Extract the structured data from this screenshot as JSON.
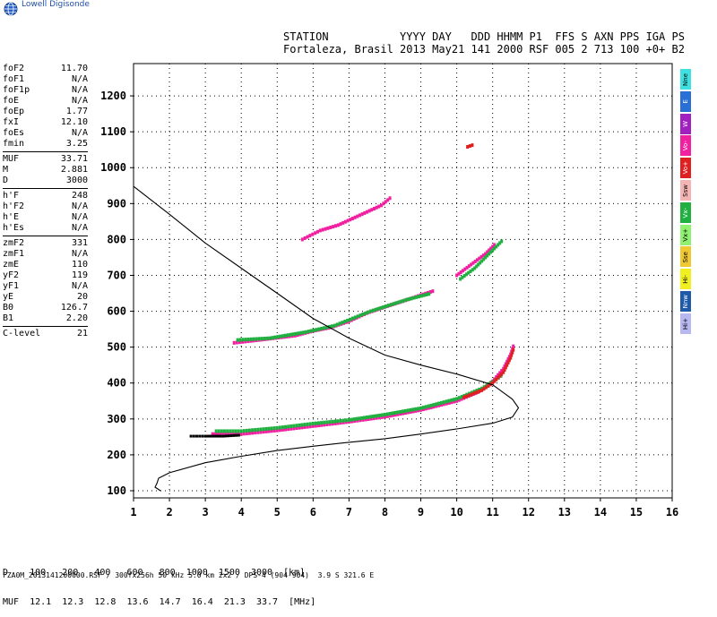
{
  "brand": {
    "name": "Lowell Digisonde"
  },
  "header": {
    "labels": "STATION           YYYY DAY   DDD HHMM P1  FFS S AXN PPS IGA PS",
    "values": "Fortaleza, Brasil 2013 May21 141 2000 RSF 005 2 713 100 +0+ B2"
  },
  "params_group1": [
    {
      "name": "foF2",
      "value": "11.70"
    },
    {
      "name": "foF1",
      "value": "N/A"
    },
    {
      "name": "foF1p",
      "value": "N/A"
    },
    {
      "name": "foE",
      "value": "N/A"
    },
    {
      "name": "foEp",
      "value": "1.77"
    },
    {
      "name": "fxI",
      "value": "12.10"
    },
    {
      "name": "foEs",
      "value": "N/A"
    },
    {
      "name": "fmin",
      "value": "3.25"
    }
  ],
  "params_group2": [
    {
      "name": "MUF",
      "value": "33.71"
    },
    {
      "name": "M",
      "value": "2.881"
    },
    {
      "name": "D",
      "value": "3000"
    }
  ],
  "params_group3": [
    {
      "name": "h'F",
      "value": "248"
    },
    {
      "name": "h'F2",
      "value": "N/A"
    },
    {
      "name": "h'E",
      "value": "N/A"
    },
    {
      "name": "h'Es",
      "value": "N/A"
    }
  ],
  "params_group4": [
    {
      "name": "zmF2",
      "value": "331"
    },
    {
      "name": "zmF1",
      "value": "N/A"
    },
    {
      "name": "zmE",
      "value": "110"
    },
    {
      "name": "yF2",
      "value": "119"
    },
    {
      "name": "yF1",
      "value": "N/A"
    },
    {
      "name": "yE",
      "value": "20"
    },
    {
      "name": "B0",
      "value": "126.7"
    },
    {
      "name": "B1",
      "value": "2.20"
    }
  ],
  "params_group5": [
    {
      "name": "C-level",
      "value": "21"
    }
  ],
  "legend": [
    {
      "label": "Nne",
      "color": "#3fe0e0"
    },
    {
      "label": "E",
      "color": "#2a6fd6"
    },
    {
      "label": "W",
      "color": "#a020c0"
    },
    {
      "label": "Vo-",
      "color": "#f020a0"
    },
    {
      "label": "Vo+",
      "color": "#e02020"
    },
    {
      "label": "Ssw",
      "color": "#f4b4b4"
    },
    {
      "label": "Vx-",
      "color": "#20b040"
    },
    {
      "label": "Vx+",
      "color": "#90f070"
    },
    {
      "label": "Sse",
      "color": "#f0c830"
    },
    {
      "label": "Hi-",
      "color": "#f0f020"
    },
    {
      "label": "Nnw",
      "color": "#1e5aa8"
    },
    {
      "label": "Hi+",
      "color": "#b8b8f0"
    }
  ],
  "muf_table": {
    "d_line": "D    100   200   400   600   800  1000  1500  3000  [km]",
    "muf_line": "MUF  12.1  12.3  12.8  13.6  14.7  16.4  21.3  33.7  [MHz]"
  },
  "footer": "FZA0M_2013141200000.RSF / 300fx256h 50 kHz 5.0 km 2x2 / DPS-4 (904-904)  3.9 S 321.6 E",
  "chart_data": {
    "type": "scatter",
    "xlim": [
      1,
      16
    ],
    "ylim": [
      80,
      1290
    ],
    "x_ticks": [
      "1",
      "2",
      "3",
      "4",
      "5",
      "6",
      "7",
      "8",
      "9",
      "10",
      "11",
      "12",
      "13",
      "14",
      "15",
      "16"
    ],
    "y_ticks": [
      "100",
      "200",
      "300",
      "400",
      "500",
      "600",
      "700",
      "800",
      "900",
      "1000",
      "1100",
      "1200"
    ],
    "grid": true,
    "profile_curve": [
      [
        1.75,
        100
      ],
      [
        1.6,
        110
      ],
      [
        1.65,
        120
      ],
      [
        1.7,
        135
      ],
      [
        2.0,
        150
      ],
      [
        3.0,
        178
      ],
      [
        4.0,
        196
      ],
      [
        5.0,
        212
      ],
      [
        6.0,
        224
      ],
      [
        7.0,
        235
      ],
      [
        8.0,
        245
      ],
      [
        9.0,
        258
      ],
      [
        10.0,
        272
      ],
      [
        11.0,
        288
      ],
      [
        11.55,
        305
      ],
      [
        11.72,
        331
      ],
      [
        11.55,
        355
      ],
      [
        11.0,
        395
      ],
      [
        10.0,
        425
      ],
      [
        9.0,
        450
      ],
      [
        8.0,
        478
      ],
      [
        7.0,
        525
      ],
      [
        6.0,
        580
      ],
      [
        5.0,
        650
      ],
      [
        4.0,
        720
      ],
      [
        3.0,
        790
      ],
      [
        2.0,
        870
      ],
      [
        1.0,
        948
      ]
    ],
    "traces": [
      {
        "name": "Vo-",
        "color": "#f020a0",
        "points": [
          [
            3.2,
            258
          ],
          [
            4,
            258
          ],
          [
            5,
            268
          ],
          [
            6,
            280
          ],
          [
            7,
            292
          ],
          [
            8,
            306
          ],
          [
            9,
            325
          ],
          [
            10,
            350
          ],
          [
            10.6,
            375
          ],
          [
            11,
            405
          ],
          [
            11.3,
            440
          ],
          [
            11.5,
            480
          ],
          [
            11.6,
            510
          ]
        ]
      },
      {
        "name": "Vx-",
        "color": "#20b040",
        "points": [
          [
            3.3,
            266
          ],
          [
            4,
            266
          ],
          [
            5,
            275
          ],
          [
            6,
            287
          ],
          [
            7,
            297
          ],
          [
            8,
            312
          ],
          [
            9,
            330
          ],
          [
            10,
            356
          ],
          [
            10.7,
            385
          ],
          [
            11.1,
            410
          ],
          [
            11.3,
            425
          ]
        ]
      },
      {
        "name": "Vo+",
        "color": "#e02020",
        "points": [
          [
            10.2,
            360
          ],
          [
            10.7,
            380
          ],
          [
            11.0,
            400
          ],
          [
            11.3,
            430
          ],
          [
            11.5,
            470
          ],
          [
            11.6,
            500
          ]
        ]
      },
      {
        "name": "O2",
        "color": "#f020a0",
        "points": [
          [
            3.8,
            512
          ],
          [
            4.5,
            520
          ],
          [
            5.5,
            532
          ],
          [
            6.0,
            545
          ],
          [
            6.5,
            555
          ],
          [
            7.0,
            572
          ],
          [
            7.5,
            595
          ],
          [
            8.0,
            612
          ],
          [
            8.5,
            628
          ],
          [
            9.0,
            645
          ],
          [
            9.4,
            658
          ]
        ]
      },
      {
        "name": "X2",
        "color": "#20b040",
        "points": [
          [
            3.9,
            520
          ],
          [
            4.8,
            525
          ],
          [
            5.8,
            542
          ],
          [
            6.6,
            560
          ],
          [
            7.6,
            600
          ],
          [
            8.6,
            632
          ],
          [
            9.3,
            650
          ]
        ]
      },
      {
        "name": "O3",
        "color": "#f020a0",
        "points": [
          [
            10.0,
            700
          ],
          [
            10.4,
            730
          ],
          [
            10.8,
            760
          ],
          [
            11.1,
            790
          ]
        ]
      },
      {
        "name": "X3",
        "color": "#20b040",
        "points": [
          [
            10.1,
            690
          ],
          [
            10.5,
            720
          ],
          [
            10.9,
            760
          ],
          [
            11.3,
            800
          ]
        ]
      },
      {
        "name": "O4",
        "color": "#f020a0",
        "points": [
          [
            5.7,
            800
          ],
          [
            6.2,
            825
          ],
          [
            6.7,
            840
          ],
          [
            7.9,
            895
          ],
          [
            8.2,
            920
          ]
        ]
      },
      {
        "name": "O5",
        "color": "#e02020",
        "points": [
          [
            10.3,
            1058
          ],
          [
            10.5,
            1065
          ]
        ]
      }
    ],
    "ground": {
      "color": "#000000",
      "points": [
        [
          2.6,
          252
        ],
        [
          3.0,
          252
        ],
        [
          3.5,
          252
        ],
        [
          4.0,
          255
        ]
      ]
    }
  }
}
